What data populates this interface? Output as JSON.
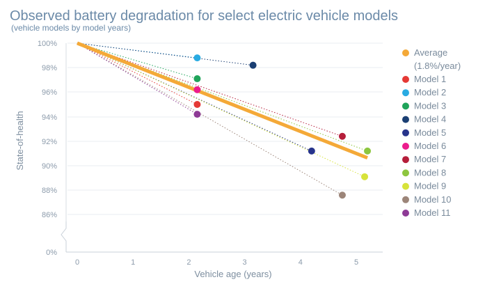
{
  "chart_data": {
    "type": "scatter",
    "title": "Observed battery degradation for select electric vehicle models",
    "subtitle": "(vehicle models by model years)",
    "xlabel": "Vehicle age (years)",
    "ylabel": "State-of-health",
    "xlim": [
      0,
      5.3
    ],
    "x_ticks": [
      "0",
      "1",
      "2",
      "3",
      "4",
      "5"
    ],
    "y_ticks": [
      "100%",
      "98%",
      "96%",
      "94%",
      "92%",
      "90%",
      "88%",
      "86%",
      "0%"
    ],
    "axis_break": "between 86% and 0%",
    "origin": {
      "x": 0,
      "y": 100
    },
    "average": {
      "label": "Average",
      "rate_label": "(1.8%/year)",
      "color": "#F4A938",
      "x_end": 5.2
    },
    "series": [
      {
        "name": "Model 1",
        "x": 2.15,
        "y": 95.0,
        "color": "#E53935"
      },
      {
        "name": "Model 2",
        "x": 2.15,
        "y": 98.8,
        "color": "#29ABE2"
      },
      {
        "name": "Model 3",
        "x": 2.15,
        "y": 97.1,
        "color": "#1FA45A"
      },
      {
        "name": "Model 4",
        "x": 3.15,
        "y": 98.2,
        "color": "#1B3F73"
      },
      {
        "name": "Model 5",
        "x": 4.2,
        "y": 91.2,
        "color": "#27348B"
      },
      {
        "name": "Model 6",
        "x": 2.15,
        "y": 96.2,
        "color": "#EC1C8C"
      },
      {
        "name": "Model 7",
        "x": 4.75,
        "y": 92.4,
        "color": "#B51E3A"
      },
      {
        "name": "Model 8",
        "x": 5.2,
        "y": 91.2,
        "color": "#8DC63F"
      },
      {
        "name": "Model 9",
        "x": 5.15,
        "y": 89.1,
        "color": "#D7E33A"
      },
      {
        "name": "Model 10",
        "x": 4.75,
        "y": 87.6,
        "color": "#9C8579"
      },
      {
        "name": "Model 11",
        "x": 2.15,
        "y": 94.2,
        "color": "#8E3A96"
      }
    ]
  }
}
